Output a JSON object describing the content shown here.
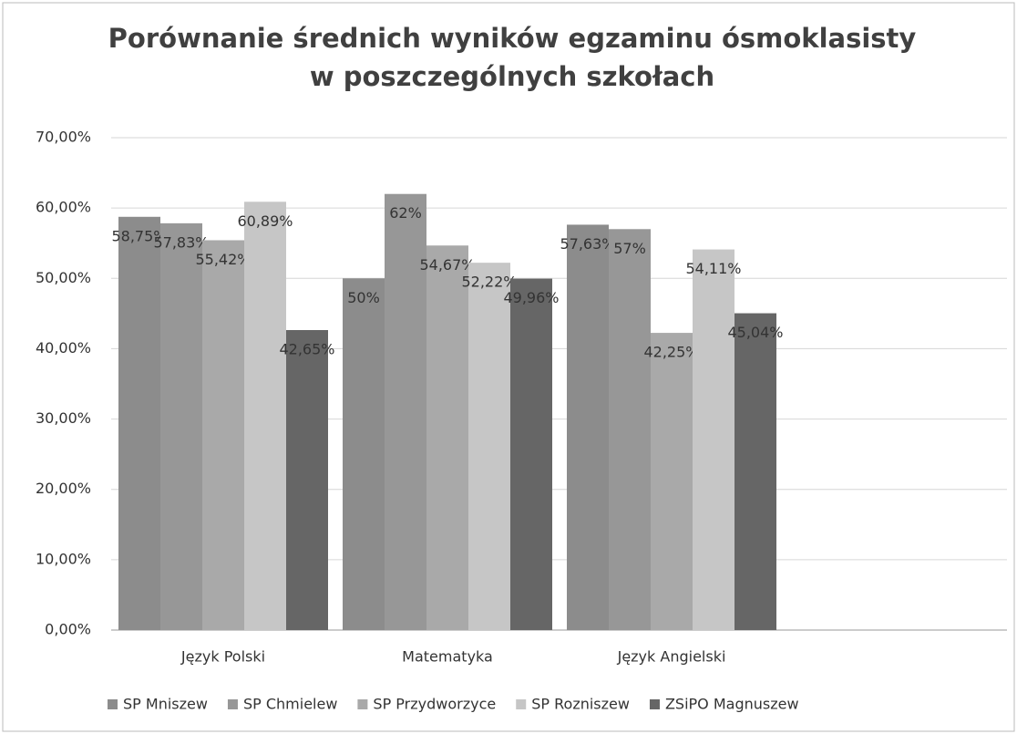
{
  "chart_data": {
    "type": "bar",
    "title": [
      "Porównanie średnich wyników egzaminu ósmoklasisty",
      "w poszczególnych szkołach"
    ],
    "categories": [
      "Język Polski",
      "Matematyka",
      "Język Angielski"
    ],
    "series": [
      {
        "name": "SP Mniszew",
        "color": "#8c8c8c",
        "values": [
          58.75,
          50,
          57.63
        ],
        "value_labels": [
          "58,75%",
          "50%",
          "57,63%"
        ]
      },
      {
        "name": "SP Chmielew",
        "color": "#979797",
        "values": [
          57.83,
          62,
          57
        ],
        "value_labels": [
          "57,83%",
          "62%",
          "57%"
        ]
      },
      {
        "name": "SP Przydworzyce",
        "color": "#a9a9a9",
        "values": [
          55.42,
          54.67,
          42.25
        ],
        "value_labels": [
          "55,42%",
          "54,67%",
          "42,25%"
        ]
      },
      {
        "name": "SP Rozniszew",
        "color": "#c6c6c6",
        "values": [
          60.89,
          52.22,
          54.11
        ],
        "value_labels": [
          "60,89%",
          "52,22%",
          "54,11%"
        ]
      },
      {
        "name": "ZSiPO Magnuszew",
        "color": "#666666",
        "values": [
          42.65,
          49.96,
          45.04
        ],
        "value_labels": [
          "42,65%",
          "49,96%",
          "45,04%"
        ]
      }
    ],
    "ylim": [
      0,
      70
    ],
    "yticks": [
      {
        "value": 0,
        "label": "0,00%"
      },
      {
        "value": 10,
        "label": "10,00%"
      },
      {
        "value": 20,
        "label": "20,00%"
      },
      {
        "value": 30,
        "label": "30,00%"
      },
      {
        "value": 40,
        "label": "40,00%"
      },
      {
        "value": 50,
        "label": "50,00%"
      },
      {
        "value": 60,
        "label": "60,00%"
      },
      {
        "value": 70,
        "label": "70,00%"
      }
    ],
    "grid": true
  }
}
